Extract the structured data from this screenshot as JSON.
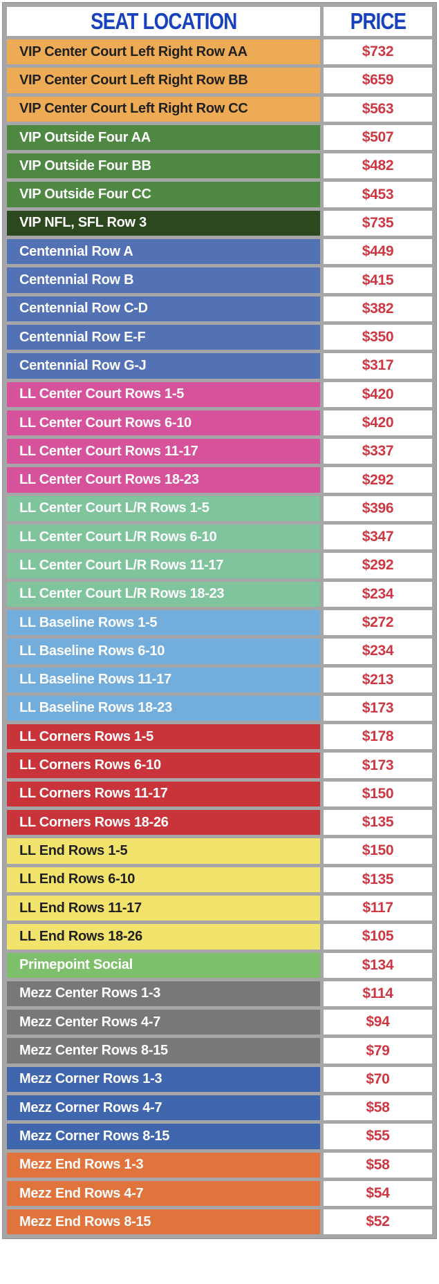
{
  "header": {
    "seat_location_label": "SEAT LOCATION",
    "price_label": "PRICE"
  },
  "colors": {
    "header_text": "#1841be",
    "price_text": "#ce3742",
    "grid": "#a6a6a8",
    "vip_center_orange": "#edab56",
    "vip_outside_green": "#4f8843",
    "vip_nfl_darkgreen": "#2c481f",
    "centennial_blue": "#5371b5",
    "ll_center_pink": "#d6539c",
    "ll_center_lr_seafoam": "#80c49e",
    "ll_baseline_lightblue": "#72addb",
    "ll_corners_red": "#c8343a",
    "ll_end_yellow": "#f1e36c",
    "primepoint_green": "#7ebf6c",
    "mezz_center_gray": "#787878",
    "mezz_corner_blue": "#4067ae",
    "mezz_end_orange": "#e1733c",
    "dark_label": "#212121",
    "light_label": "#ffffff"
  },
  "rows": [
    {
      "label": "VIP Center Court Left Right Row AA",
      "price": "$732",
      "bg": "#edab56",
      "fg": "#212121"
    },
    {
      "label": "VIP Center Court Left Right Row BB",
      "price": "$659",
      "bg": "#edab56",
      "fg": "#212121"
    },
    {
      "label": "VIP Center Court Left Right Row CC",
      "price": "$563",
      "bg": "#edab56",
      "fg": "#212121"
    },
    {
      "label": "VIP Outside Four AA",
      "price": "$507",
      "bg": "#4f8843",
      "fg": "#ffffff"
    },
    {
      "label": "VIP Outside Four BB",
      "price": "$482",
      "bg": "#4f8843",
      "fg": "#ffffff"
    },
    {
      "label": "VIP Outside Four CC",
      "price": "$453",
      "bg": "#4f8843",
      "fg": "#ffffff"
    },
    {
      "label": "VIP NFL, SFL Row 3",
      "price": "$735",
      "bg": "#2c481f",
      "fg": "#ffffff"
    },
    {
      "label": "Centennial Row A",
      "price": "$449",
      "bg": "#5371b5",
      "fg": "#ffffff"
    },
    {
      "label": "Centennial Row B",
      "price": "$415",
      "bg": "#5371b5",
      "fg": "#ffffff"
    },
    {
      "label": "Centennial Row C-D",
      "price": "$382",
      "bg": "#5371b5",
      "fg": "#ffffff"
    },
    {
      "label": "Centennial Row E-F",
      "price": "$350",
      "bg": "#5371b5",
      "fg": "#ffffff"
    },
    {
      "label": "Centennial Row G-J",
      "price": "$317",
      "bg": "#5371b5",
      "fg": "#ffffff"
    },
    {
      "label": "LL Center Court Rows 1-5",
      "price": "$420",
      "bg": "#d6539c",
      "fg": "#ffffff"
    },
    {
      "label": "LL Center Court Rows 6-10",
      "price": "$420",
      "bg": "#d6539c",
      "fg": "#ffffff"
    },
    {
      "label": "LL Center Court Rows 11-17",
      "price": "$337",
      "bg": "#d6539c",
      "fg": "#ffffff"
    },
    {
      "label": "LL Center Court Rows 18-23",
      "price": "$292",
      "bg": "#d6539c",
      "fg": "#ffffff"
    },
    {
      "label": "LL Center Court L/R Rows 1-5",
      "price": "$396",
      "bg": "#80c49e",
      "fg": "#ffffff"
    },
    {
      "label": "LL Center Court L/R Rows 6-10",
      "price": "$347",
      "bg": "#80c49e",
      "fg": "#ffffff"
    },
    {
      "label": "LL Center Court L/R Rows 11-17",
      "price": "$292",
      "bg": "#80c49e",
      "fg": "#ffffff"
    },
    {
      "label": "LL Center Court L/R Rows 18-23",
      "price": "$234",
      "bg": "#80c49e",
      "fg": "#ffffff"
    },
    {
      "label": "LL Baseline Rows 1-5",
      "price": "$272",
      "bg": "#72addb",
      "fg": "#ffffff"
    },
    {
      "label": "LL Baseline Rows 6-10",
      "price": "$234",
      "bg": "#72addb",
      "fg": "#ffffff"
    },
    {
      "label": "LL Baseline Rows 11-17",
      "price": "$213",
      "bg": "#72addb",
      "fg": "#ffffff"
    },
    {
      "label": "LL Baseline Rows 18-23",
      "price": "$173",
      "bg": "#72addb",
      "fg": "#ffffff"
    },
    {
      "label": "LL Corners Rows 1-5",
      "price": "$178",
      "bg": "#c8343a",
      "fg": "#ffffff"
    },
    {
      "label": "LL Corners Rows 6-10",
      "price": "$173",
      "bg": "#c8343a",
      "fg": "#ffffff"
    },
    {
      "label": "LL Corners Rows 11-17",
      "price": "$150",
      "bg": "#c8343a",
      "fg": "#ffffff"
    },
    {
      "label": "LL Corners Rows 18-26",
      "price": "$135",
      "bg": "#c8343a",
      "fg": "#ffffff"
    },
    {
      "label": "LL End Rows 1-5",
      "price": "$150",
      "bg": "#f1e36c",
      "fg": "#212121"
    },
    {
      "label": "LL End Rows 6-10",
      "price": "$135",
      "bg": "#f1e36c",
      "fg": "#212121"
    },
    {
      "label": "LL End Rows 11-17",
      "price": "$117",
      "bg": "#f1e36c",
      "fg": "#212121"
    },
    {
      "label": "LL End Rows 18-26",
      "price": "$105",
      "bg": "#f1e36c",
      "fg": "#212121"
    },
    {
      "label": "Primepoint Social",
      "price": "$134",
      "bg": "#7ebf6c",
      "fg": "#ffffff"
    },
    {
      "label": "Mezz Center Rows 1-3",
      "price": "$114",
      "bg": "#787878",
      "fg": "#ffffff"
    },
    {
      "label": "Mezz Center Rows 4-7",
      "price": "$94",
      "bg": "#787878",
      "fg": "#ffffff"
    },
    {
      "label": "Mezz Center Rows 8-15",
      "price": "$79",
      "bg": "#787878",
      "fg": "#ffffff"
    },
    {
      "label": "Mezz Corner Rows 1-3",
      "price": "$70",
      "bg": "#4067ae",
      "fg": "#ffffff"
    },
    {
      "label": "Mezz Corner Rows 4-7",
      "price": "$58",
      "bg": "#4067ae",
      "fg": "#ffffff"
    },
    {
      "label": "Mezz Corner Rows 8-15",
      "price": "$55",
      "bg": "#4067ae",
      "fg": "#ffffff"
    },
    {
      "label": "Mezz End Rows 1-3",
      "price": "$58",
      "bg": "#e1733c",
      "fg": "#ffffff"
    },
    {
      "label": "Mezz End Rows 4-7",
      "price": "$54",
      "bg": "#e1733c",
      "fg": "#ffffff"
    },
    {
      "label": "Mezz End Rows 8-15",
      "price": "$52",
      "bg": "#e1733c",
      "fg": "#ffffff"
    }
  ],
  "chart_data": {
    "type": "table",
    "title": "Seat location price chart",
    "columns": [
      "SEAT LOCATION",
      "PRICE"
    ],
    "categories": [
      "VIP Center Court Left Right Row AA",
      "VIP Center Court Left Right Row BB",
      "VIP Center Court Left Right Row CC",
      "VIP Outside Four AA",
      "VIP Outside Four BB",
      "VIP Outside Four CC",
      "VIP NFL, SFL Row 3",
      "Centennial Row A",
      "Centennial Row B",
      "Centennial Row C-D",
      "Centennial Row E-F",
      "Centennial Row G-J",
      "LL Center Court Rows 1-5",
      "LL Center Court Rows 6-10",
      "LL Center Court Rows 11-17",
      "LL Center Court Rows 18-23",
      "LL Center Court L/R Rows 1-5",
      "LL Center Court L/R Rows 6-10",
      "LL Center Court L/R Rows 11-17",
      "LL Center Court L/R Rows 18-23",
      "LL Baseline Rows 1-5",
      "LL Baseline Rows 6-10",
      "LL Baseline Rows 11-17",
      "LL Baseline Rows 18-23",
      "LL Corners Rows 1-5",
      "LL Corners Rows 6-10",
      "LL Corners Rows 11-17",
      "LL Corners Rows 18-26",
      "LL End Rows 1-5",
      "LL End Rows 6-10",
      "LL End Rows 11-17",
      "LL End Rows 18-26",
      "Primepoint Social",
      "Mezz Center Rows 1-3",
      "Mezz Center Rows 4-7",
      "Mezz Center Rows 8-15",
      "Mezz Corner Rows 1-3",
      "Mezz Corner Rows 4-7",
      "Mezz Corner Rows 8-15",
      "Mezz End Rows 1-3",
      "Mezz End Rows 4-7",
      "Mezz End Rows 8-15"
    ],
    "values": [
      732,
      659,
      563,
      507,
      482,
      453,
      735,
      449,
      415,
      382,
      350,
      317,
      420,
      420,
      337,
      292,
      396,
      347,
      292,
      234,
      272,
      234,
      213,
      173,
      178,
      173,
      150,
      135,
      150,
      135,
      117,
      105,
      134,
      114,
      94,
      79,
      70,
      58,
      55,
      58,
      54,
      52
    ],
    "value_unit": "USD"
  }
}
